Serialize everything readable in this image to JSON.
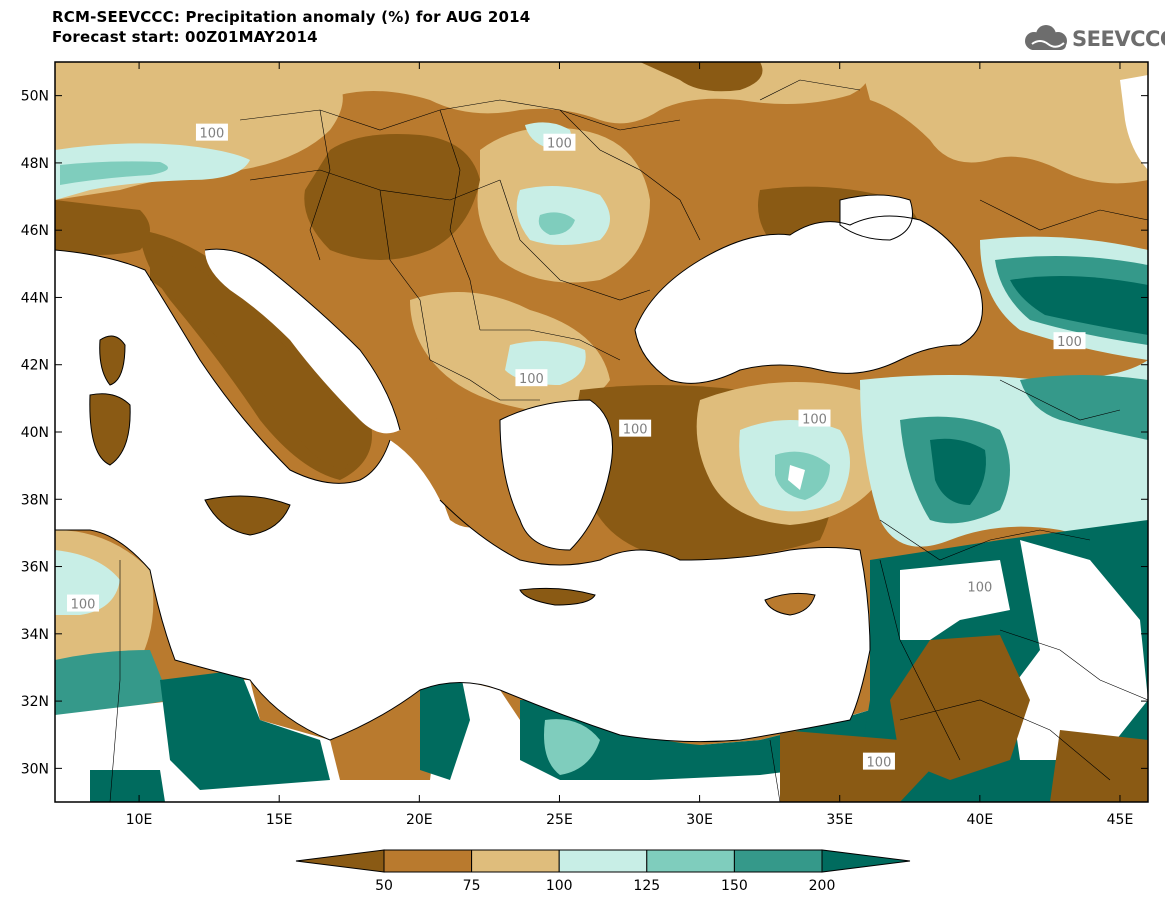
{
  "header": {
    "title_line1": "RCM-SEEVCCC: Precipitation anomaly (%) for AUG 2014",
    "title_line2": "Forecast start: 00Z01MAY2014"
  },
  "logo": {
    "text": "SEEVCCC",
    "icon": "cloud-icon",
    "color": "#6d6d6d"
  },
  "map": {
    "lat_range": [
      29,
      51
    ],
    "lon_range": [
      7,
      46
    ],
    "lat_ticks": [
      {
        "value": 50,
        "label": "50N"
      },
      {
        "value": 48,
        "label": "48N"
      },
      {
        "value": 46,
        "label": "46N"
      },
      {
        "value": 44,
        "label": "44N"
      },
      {
        "value": 42,
        "label": "42N"
      },
      {
        "value": 40,
        "label": "40N"
      },
      {
        "value": 38,
        "label": "38N"
      },
      {
        "value": 36,
        "label": "36N"
      },
      {
        "value": 34,
        "label": "34N"
      },
      {
        "value": 32,
        "label": "32N"
      },
      {
        "value": 30,
        "label": "30N"
      }
    ],
    "lon_ticks": [
      {
        "value": 10,
        "label": "10E"
      },
      {
        "value": 15,
        "label": "15E"
      },
      {
        "value": 20,
        "label": "20E"
      },
      {
        "value": 25,
        "label": "25E"
      },
      {
        "value": 30,
        "label": "30E"
      },
      {
        "value": 35,
        "label": "35E"
      },
      {
        "value": 40,
        "label": "40E"
      },
      {
        "value": 45,
        "label": "45E"
      }
    ],
    "contour_labels": [
      {
        "text": "100",
        "lon": 12.6,
        "lat": 48.9
      },
      {
        "text": "100",
        "lon": 25.0,
        "lat": 48.6
      },
      {
        "text": "100",
        "lon": 24.0,
        "lat": 41.6
      },
      {
        "text": "100",
        "lon": 43.2,
        "lat": 42.7
      },
      {
        "text": "100",
        "lon": 34.1,
        "lat": 40.4
      },
      {
        "text": "100",
        "lon": 27.7,
        "lat": 40.1
      },
      {
        "text": "100",
        "lon": 40.0,
        "lat": 35.4
      },
      {
        "text": "100",
        "lon": 8.0,
        "lat": 34.9
      },
      {
        "text": "100",
        "lon": 36.4,
        "lat": 30.2
      }
    ]
  },
  "colorbar": {
    "colors": [
      "#8a5a14",
      "#b97a2e",
      "#dfbd7c",
      "#c8eee6",
      "#7fcdbd",
      "#35998a",
      "#006b5e"
    ],
    "labels": [
      "50",
      "75",
      "100",
      "125",
      "150",
      "200"
    ]
  }
}
